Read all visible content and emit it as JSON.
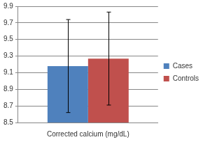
{
  "chart_data": {
    "type": "bar",
    "categories": [
      "Corrected calcium (mg/dL)"
    ],
    "series": [
      {
        "name": "Cases",
        "color": "#4f81bd",
        "values": [
          9.18
        ],
        "errors": [
          0.56
        ]
      },
      {
        "name": "Controls",
        "color": "#c0504d",
        "values": [
          9.27
        ],
        "errors": [
          0.56
        ]
      }
    ],
    "ylim": [
      8.5,
      9.9
    ],
    "yticks": [
      8.5,
      8.7,
      8.9,
      9.1,
      9.3,
      9.5,
      9.7,
      9.9
    ],
    "grid": true,
    "legend": "right"
  }
}
